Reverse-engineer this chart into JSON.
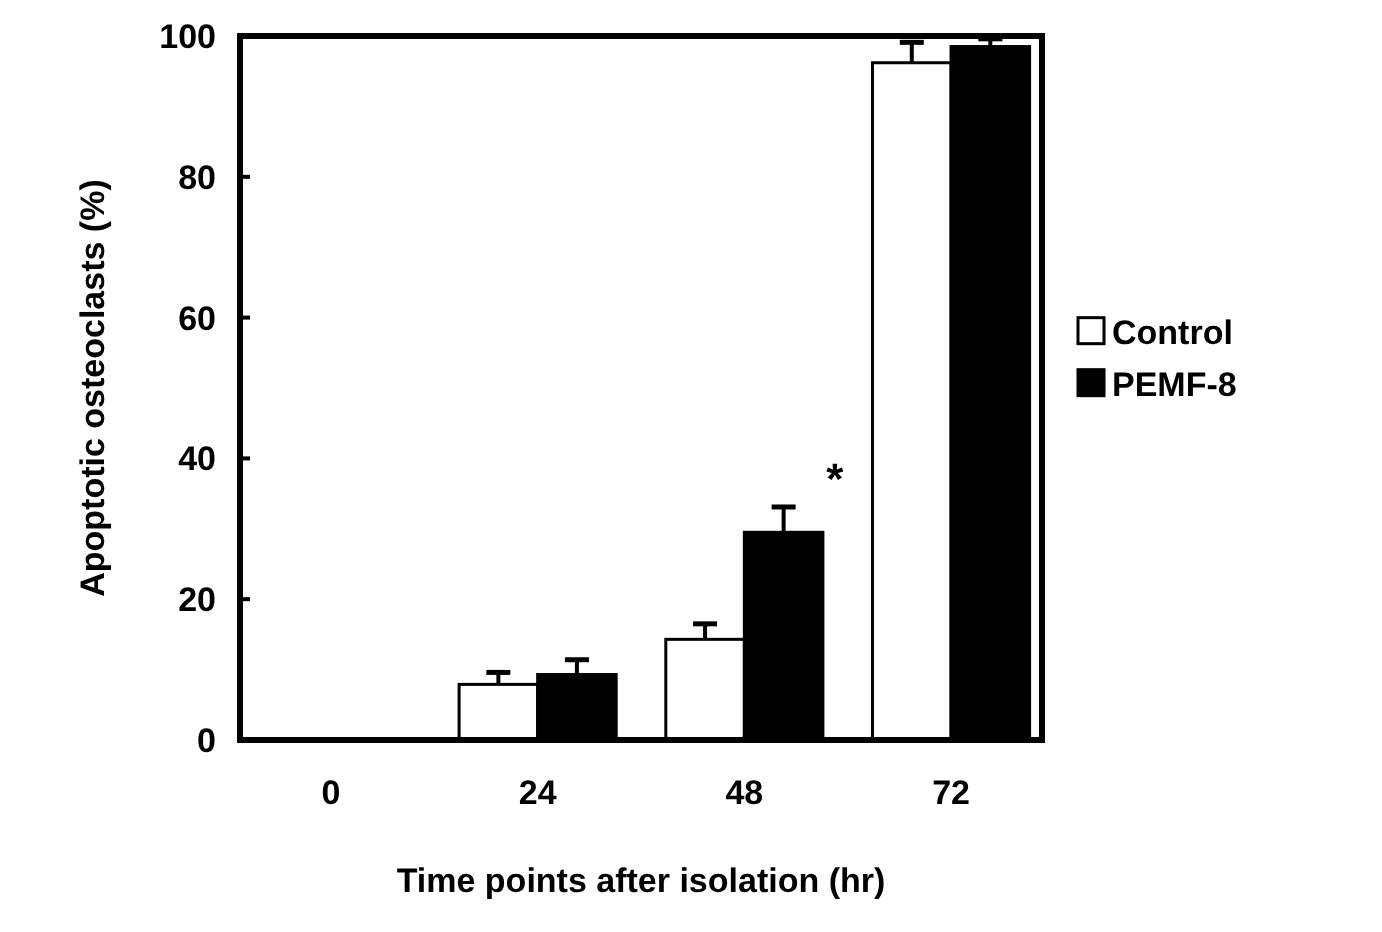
{
  "chart_data": {
    "type": "bar",
    "xlabel": "Time points after isolation (hr)",
    "ylabel": "Apoptotic osteoclasts (%)",
    "categories": [
      "0",
      "24",
      "48",
      "72"
    ],
    "series": [
      {
        "name": "Control",
        "color": "#ffffff",
        "values": [
          0,
          7.9,
          14.3,
          96.2
        ],
        "errors": [
          null,
          1.7,
          2.2,
          2.9
        ]
      },
      {
        "name": "PEMF-8",
        "color": "#000000",
        "values": [
          0,
          9.3,
          29.5,
          98.5
        ],
        "errors": [
          null,
          2.1,
          3.6,
          1.1
        ]
      }
    ],
    "ylim": [
      0,
      100
    ],
    "yticks": [
      0,
      20,
      40,
      60,
      80,
      100
    ],
    "legend": "right",
    "grid": false,
    "annotations": [
      {
        "text": "*",
        "x": "48",
        "y": 29.5
      }
    ]
  }
}
